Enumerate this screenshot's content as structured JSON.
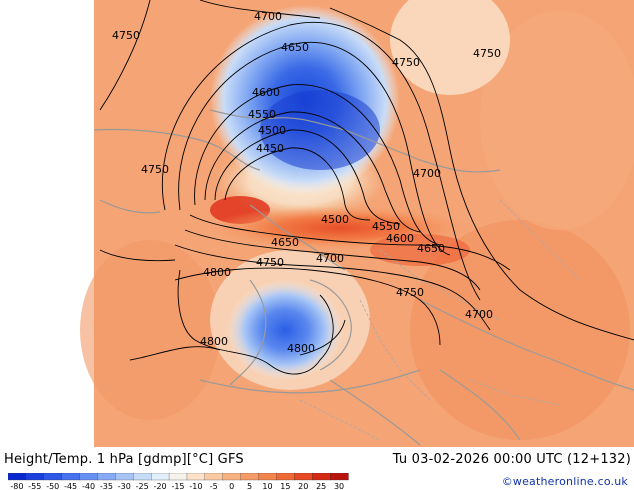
{
  "map": {
    "contour_labels": [
      {
        "text": "4700",
        "value": 4700
      },
      {
        "text": "4750",
        "value": 4750
      },
      {
        "text": "4650",
        "value": 4650
      },
      {
        "text": "4750",
        "value": 4750
      },
      {
        "text": "4750",
        "value": 4750
      },
      {
        "text": "4600",
        "value": 4600
      },
      {
        "text": "4550",
        "value": 4550
      },
      {
        "text": "4500",
        "value": 4500
      },
      {
        "text": "4450",
        "value": 4450
      },
      {
        "text": "4750",
        "value": 4750
      },
      {
        "text": "4700",
        "value": 4700
      },
      {
        "text": "4500",
        "value": 4500
      },
      {
        "text": "4550",
        "value": 4550
      },
      {
        "text": "4600",
        "value": 4600
      },
      {
        "text": "4650",
        "value": 4650
      },
      {
        "text": "4650",
        "value": 4650
      },
      {
        "text": "4750",
        "value": 4750
      },
      {
        "text": "4700",
        "value": 4700
      },
      {
        "text": "4800",
        "value": 4800
      },
      {
        "text": "4750",
        "value": 4750
      },
      {
        "text": "4700",
        "value": 4700
      },
      {
        "text": "4800",
        "value": 4800
      },
      {
        "text": "4800",
        "value": 4800
      }
    ]
  },
  "footer": {
    "title": "Height/Temp. 1 hPa [gdmp][°C] GFS",
    "run_info": "Tu 03-02-2026 00:00 UTC (12+132)",
    "credit": "©weatheronline.co.uk"
  },
  "legend": {
    "ticks": [
      "-80",
      "-55",
      "-50",
      "-45",
      "-40",
      "-35",
      "-30",
      "-25",
      "-20",
      "-15",
      "-10",
      "-5",
      "0",
      "5",
      "10",
      "15",
      "20",
      "25",
      "30"
    ],
    "colors": [
      "#0a28d0",
      "#1c40dc",
      "#2e58e6",
      "#4872ee",
      "#6690f2",
      "#86aaf4",
      "#a6c4f6",
      "#c6dcf8",
      "#e2eefa",
      "#f6f2ec",
      "#fce2c8",
      "#fbc9a2",
      "#f8b282",
      "#f59c66",
      "#f2844c",
      "#ee6a36",
      "#e64a24",
      "#d42a14",
      "#b8140c"
    ]
  }
}
